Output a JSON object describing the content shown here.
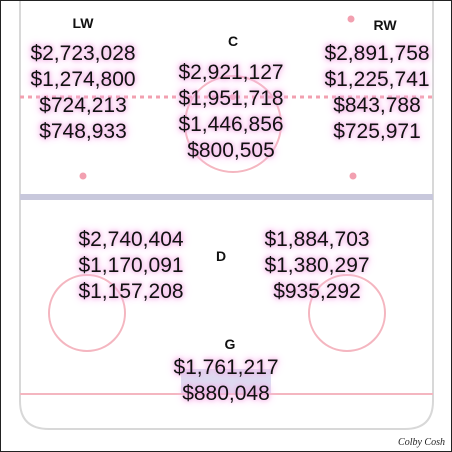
{
  "positions": {
    "lw": {
      "label": "LW",
      "salaries": [
        "$2,723,028",
        "$1,274,800",
        "$724,213",
        "$748,933"
      ]
    },
    "c": {
      "label": "C",
      "salaries": [
        "$2,921,127",
        "$1,951,718",
        "$1,446,856",
        "$800,505"
      ]
    },
    "rw": {
      "label": "RW",
      "salaries": [
        "$2,891,758",
        "$1,225,741",
        "$843,788",
        "$725,971"
      ]
    },
    "d": {
      "label": "D",
      "left": [
        "$2,740,404",
        "$1,170,091",
        "$1,157,208"
      ],
      "right": [
        "$1,884,703",
        "$1,380,297",
        "$935,292"
      ]
    },
    "g": {
      "label": "G",
      "salaries": [
        "$1,761,217",
        "$880,048"
      ]
    }
  },
  "credit": "Colby Cosh",
  "colors": {
    "red_line": "#f2a0b0",
    "blue_line": "#c8c8dc",
    "crease": "#dcdcf0",
    "glow": "#f4b8ea",
    "text": "#111111"
  }
}
